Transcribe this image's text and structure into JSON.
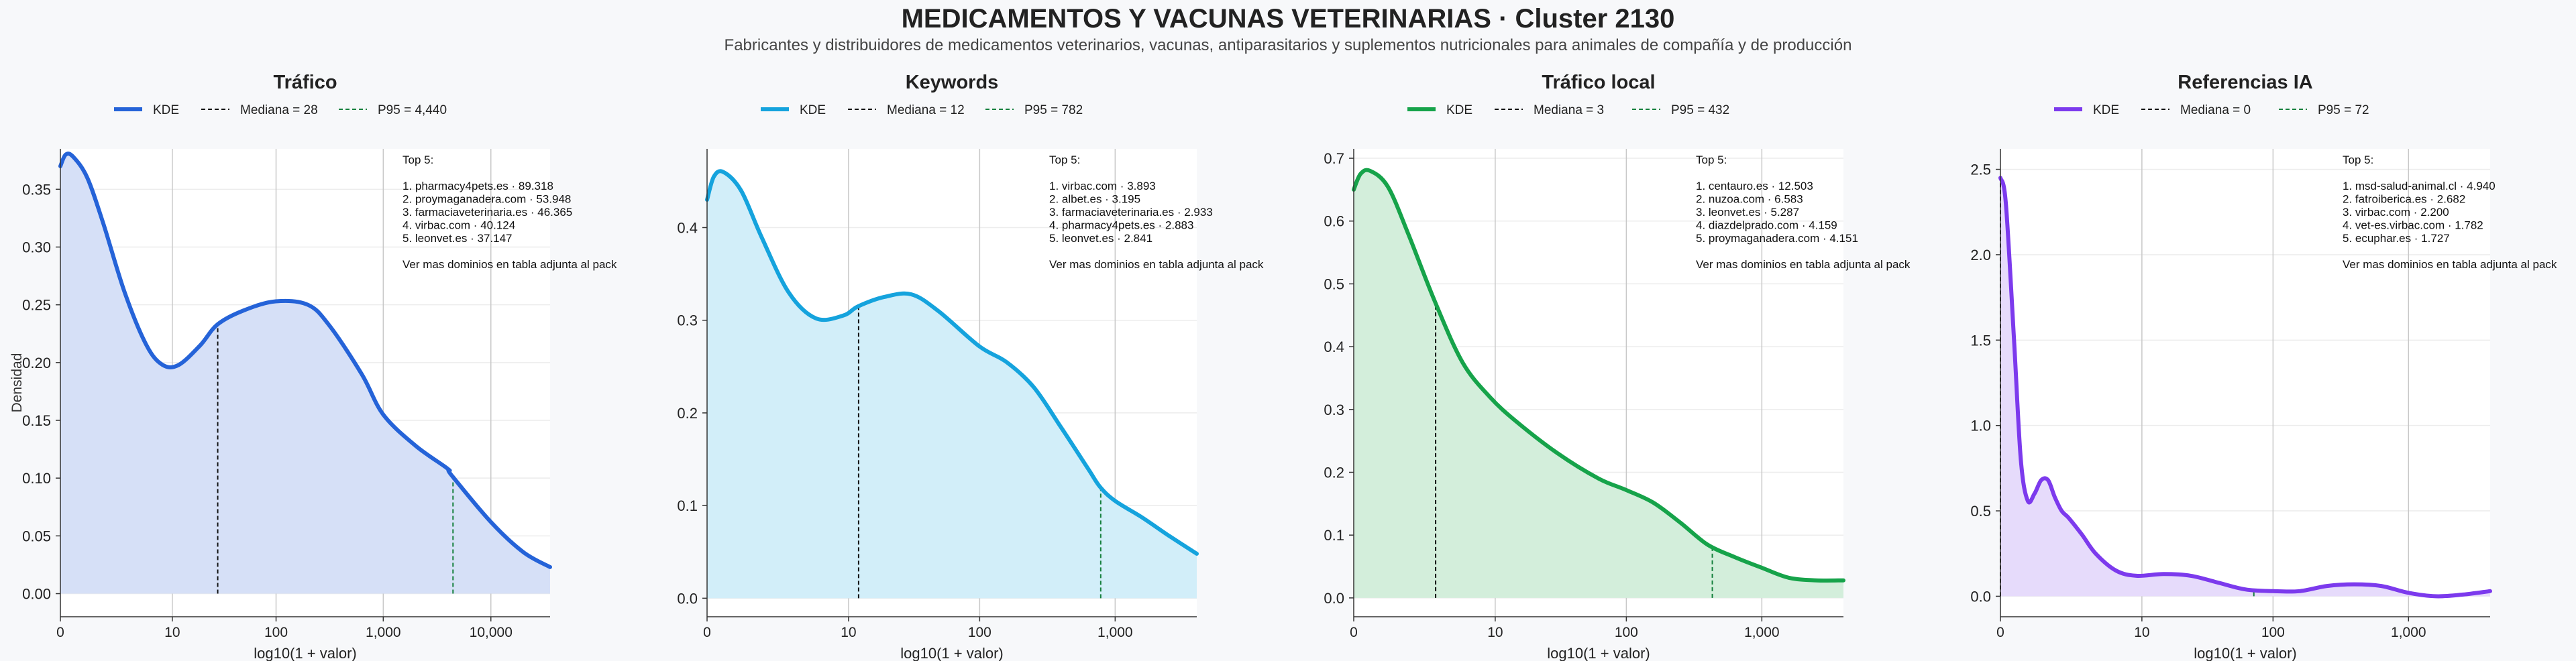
{
  "title": "MEDICAMENTOS Y VACUNAS VETERINARIAS · Cluster 2130",
  "subtitle": "Fabricantes y distribuidores de medicamentos veterinarios, vacunas, antiparasitarios y suplementos nutricionales para animales de compañía y de producción",
  "ylabel_shared": "Densidad",
  "chart_data": [
    {
      "type": "area",
      "title": "Tráfico",
      "xlabel": "log10(1 + valor)",
      "ylabel": "Densidad",
      "color": "#2563d8",
      "fill": "#d6e0f7",
      "xlim": [
        0,
        4.55
      ],
      "ylim": [
        -0.02,
        0.385
      ],
      "x_ticks": [
        {
          "v": 0,
          "label": "0"
        },
        {
          "v": 1.04,
          "label": "10"
        },
        {
          "v": 2.004,
          "label": "100"
        },
        {
          "v": 3.0,
          "label": "1,000"
        },
        {
          "v": 4.0,
          "label": "10,000"
        }
      ],
      "y_ticks": [
        {
          "v": 0,
          "label": "0.00"
        },
        {
          "v": 0.05,
          "label": "0.05"
        },
        {
          "v": 0.1,
          "label": "0.10"
        },
        {
          "v": 0.15,
          "label": "0.15"
        },
        {
          "v": 0.2,
          "label": "0.20"
        },
        {
          "v": 0.25,
          "label": "0.25"
        },
        {
          "v": 0.3,
          "label": "0.30"
        },
        {
          "v": 0.35,
          "label": "0.35"
        }
      ],
      "x": [
        0,
        0.05,
        0.12,
        0.25,
        0.4,
        0.6,
        0.8,
        0.95,
        1.1,
        1.3,
        1.46,
        1.7,
        2.0,
        2.3,
        2.5,
        2.8,
        3.0,
        3.3,
        3.6,
        3.63,
        4.0,
        4.3,
        4.55
      ],
      "y": [
        0.37,
        0.38,
        0.378,
        0.36,
        0.32,
        0.26,
        0.215,
        0.198,
        0.198,
        0.215,
        0.233,
        0.245,
        0.253,
        0.25,
        0.232,
        0.19,
        0.155,
        0.128,
        0.108,
        0.103,
        0.062,
        0.036,
        0.023
      ],
      "median": 1.462,
      "p95": 3.648,
      "legend": {
        "kde": "KDE",
        "median": "Mediana = 28",
        "p95": "P95 = 4,440"
      },
      "annotation": [
        "Top 5:",
        "",
        "1. pharmacy4pets.es · 89.318",
        "2. proymaganadera.com · 53.948",
        "3. farmaciaveterinaria.es · 46.365",
        "4. virbac.com · 40.124",
        "5. leonvet.es · 37.147",
        "",
        "Ver mas dominios en tabla adjunta al pack"
      ]
    },
    {
      "type": "area",
      "title": "Keywords",
      "xlabel": "log10(1 + valor)",
      "ylabel": "",
      "color": "#15a3dd",
      "fill": "#d2eef9",
      "xlim": [
        0,
        3.6
      ],
      "ylim": [
        -0.02,
        0.485
      ],
      "x_ticks": [
        {
          "v": 0,
          "label": "0"
        },
        {
          "v": 1.04,
          "label": "10"
        },
        {
          "v": 2.004,
          "label": "100"
        },
        {
          "v": 3.0,
          "label": "1,000"
        }
      ],
      "y_ticks": [
        {
          "v": 0,
          "label": "0.0"
        },
        {
          "v": 0.1,
          "label": "0.1"
        },
        {
          "v": 0.2,
          "label": "0.2"
        },
        {
          "v": 0.3,
          "label": "0.3"
        },
        {
          "v": 0.4,
          "label": "0.4"
        }
      ],
      "x": [
        0,
        0.05,
        0.12,
        0.25,
        0.4,
        0.6,
        0.8,
        1.0,
        1.11,
        1.3,
        1.5,
        1.7,
        2.0,
        2.2,
        2.4,
        2.6,
        2.8,
        2.89,
        3.0,
        3.2,
        3.4,
        3.6
      ],
      "y": [
        0.43,
        0.455,
        0.46,
        0.44,
        0.39,
        0.33,
        0.302,
        0.305,
        0.315,
        0.325,
        0.328,
        0.31,
        0.272,
        0.255,
        0.228,
        0.185,
        0.14,
        0.12,
        0.105,
        0.087,
        0.067,
        0.048
      ],
      "median": 1.114,
      "p95": 2.894,
      "legend": {
        "kde": "KDE",
        "median": "Mediana = 12",
        "p95": "P95 = 782"
      },
      "annotation": [
        "Top 5:",
        "",
        "1. virbac.com · 3.893",
        "2. albet.es · 3.195",
        "3. farmaciaveterinaria.es · 2.933",
        "4. pharmacy4pets.es · 2.883",
        "5. leonvet.es · 2.841",
        "",
        "Ver mas dominios en tabla adjunta al pack"
      ]
    },
    {
      "type": "area",
      "title": "Tráfico local",
      "xlabel": "log10(1 + valor)",
      "ylabel": "",
      "color": "#16a34a",
      "fill": "#d3eedb",
      "xlim": [
        0,
        3.6
      ],
      "ylim": [
        -0.03,
        0.715
      ],
      "x_ticks": [
        {
          "v": 0,
          "label": "0"
        },
        {
          "v": 1.04,
          "label": "10"
        },
        {
          "v": 2.004,
          "label": "100"
        },
        {
          "v": 3.0,
          "label": "1,000"
        }
      ],
      "y_ticks": [
        {
          "v": 0,
          "label": "0.0"
        },
        {
          "v": 0.1,
          "label": "0.1"
        },
        {
          "v": 0.2,
          "label": "0.2"
        },
        {
          "v": 0.3,
          "label": "0.3"
        },
        {
          "v": 0.4,
          "label": "0.4"
        },
        {
          "v": 0.5,
          "label": "0.5"
        },
        {
          "v": 0.6,
          "label": "0.6"
        },
        {
          "v": 0.7,
          "label": "0.7"
        }
      ],
      "x": [
        0,
        0.05,
        0.12,
        0.25,
        0.4,
        0.6,
        0.8,
        1.0,
        1.2,
        1.5,
        1.8,
        2.0,
        2.2,
        2.4,
        2.6,
        2.8,
        3.0,
        3.2,
        3.4,
        3.6
      ],
      "y": [
        0.65,
        0.675,
        0.68,
        0.655,
        0.58,
        0.47,
        0.375,
        0.32,
        0.28,
        0.23,
        0.19,
        0.172,
        0.152,
        0.12,
        0.085,
        0.065,
        0.048,
        0.032,
        0.028,
        0.028
      ],
      "median": 0.602,
      "p95": 2.636,
      "legend": {
        "kde": "KDE",
        "median": "Mediana = 3",
        "p95": "P95 = 432"
      },
      "annotation": [
        "Top 5:",
        "",
        "1. centauro.es · 12.503",
        "2. nuzoa.com · 6.583",
        "3. leonvet.es · 5.287",
        "4. diazdelprado.com · 4.159",
        "5. proymaganadera.com · 4.151",
        "",
        "Ver mas dominios en tabla adjunta al pack"
      ]
    },
    {
      "type": "area",
      "title": "Referencias IA",
      "xlabel": "log10(1 + valor)",
      "ylabel": "",
      "color": "#7c3aed",
      "fill": "#e6dbfb",
      "xlim": [
        0,
        3.6
      ],
      "ylim": [
        -0.12,
        2.62
      ],
      "x_ticks": [
        {
          "v": 0,
          "label": "0"
        },
        {
          "v": 1.04,
          "label": "10"
        },
        {
          "v": 2.004,
          "label": "100"
        },
        {
          "v": 3.0,
          "label": "1,000"
        }
      ],
      "y_ticks": [
        {
          "v": 0,
          "label": "0.0"
        },
        {
          "v": 0.5,
          "label": "0.5"
        },
        {
          "v": 1.0,
          "label": "1.0"
        },
        {
          "v": 1.5,
          "label": "1.5"
        },
        {
          "v": 2.0,
          "label": "2.0"
        },
        {
          "v": 2.5,
          "label": "2.5"
        }
      ],
      "x": [
        0,
        0.04,
        0.1,
        0.15,
        0.2,
        0.25,
        0.3,
        0.35,
        0.4,
        0.45,
        0.5,
        0.6,
        0.7,
        0.85,
        1.0,
        1.2,
        1.4,
        1.6,
        1.8,
        2.0,
        2.2,
        2.4,
        2.6,
        2.8,
        3.0,
        3.2,
        3.4,
        3.6
      ],
      "y": [
        2.45,
        2.3,
        1.5,
        0.8,
        0.56,
        0.6,
        0.68,
        0.68,
        0.58,
        0.5,
        0.46,
        0.36,
        0.25,
        0.15,
        0.12,
        0.13,
        0.12,
        0.08,
        0.04,
        0.03,
        0.03,
        0.06,
        0.07,
        0.06,
        0.02,
        0.0,
        0.01,
        0.03
      ],
      "median": 0,
      "p95": 1.863,
      "legend": {
        "kde": "KDE",
        "median": "Mediana = 0",
        "p95": "P95 = 72"
      },
      "annotation": [
        "Top 5:",
        "",
        "1. msd-salud-animal.cl · 4.940",
        "2. fatroiberica.es · 2.682",
        "3. virbac.com · 2.200",
        "4. vet-es.virbac.com · 1.782",
        "5. ecuphar.es · 1.727",
        "",
        "Ver mas dominios en tabla adjunta al pack"
      ]
    }
  ]
}
